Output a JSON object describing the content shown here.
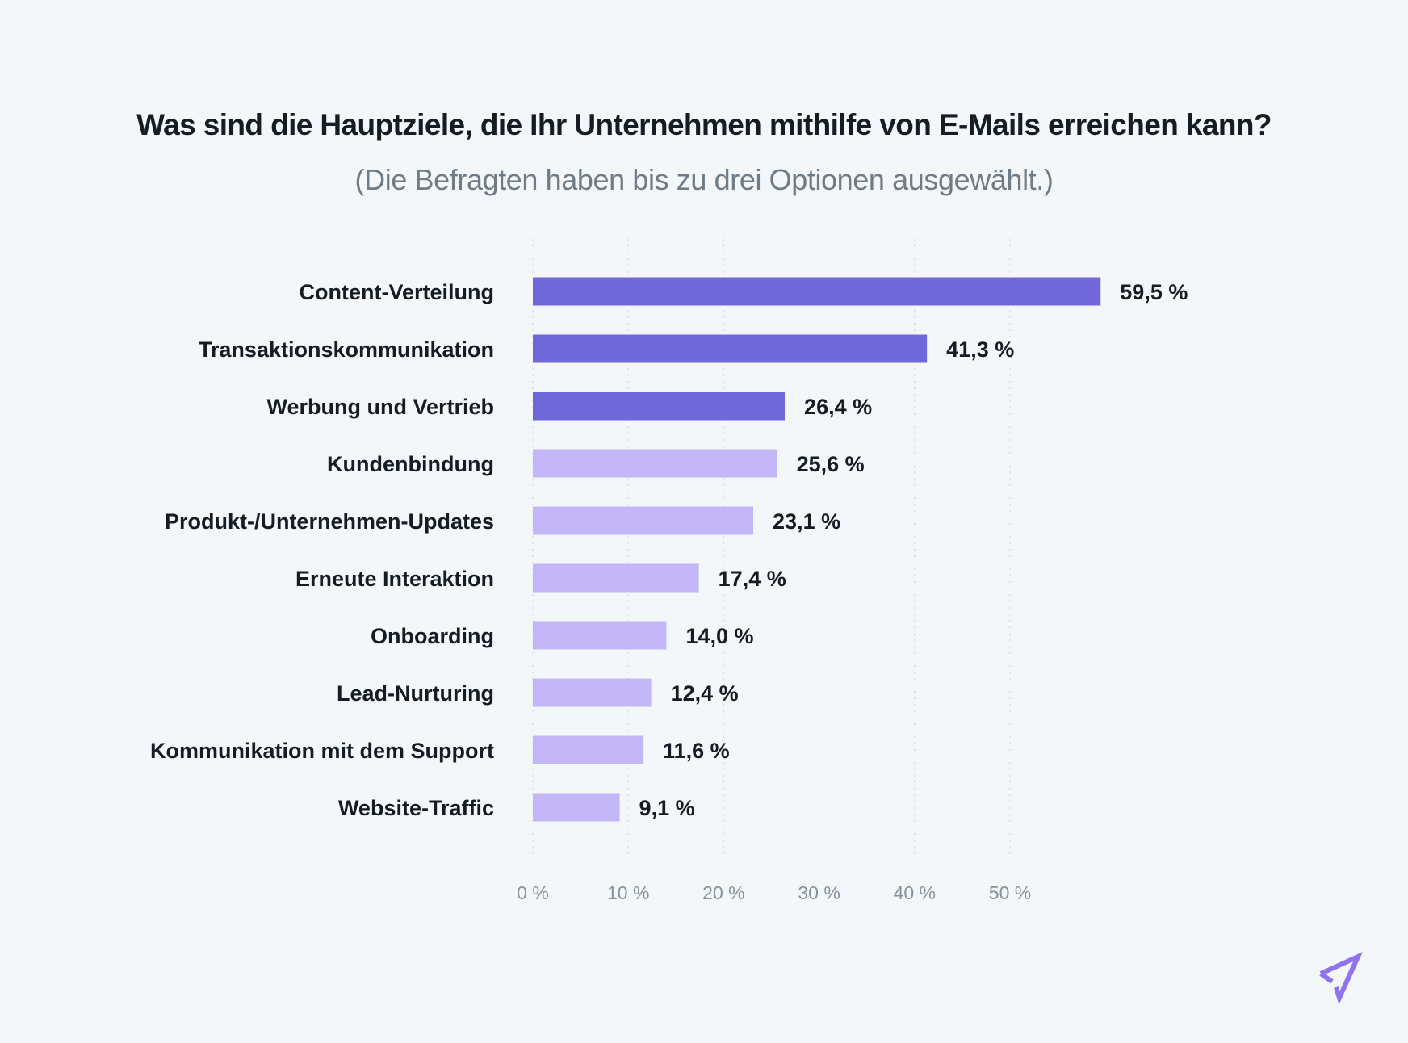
{
  "chart_data": {
    "type": "bar",
    "orientation": "horizontal",
    "title": "Was sind die Hauptziele, die Ihr Unternehmen mithilfe von E-Mails erreichen kann?",
    "subtitle": "(Die Befragten haben bis zu drei Optionen ausgewählt.)",
    "xlabel": "",
    "ylabel": "",
    "xlim": [
      0,
      50
    ],
    "x_ticks": [
      0,
      10,
      20,
      30,
      40,
      50
    ],
    "x_tick_labels": [
      "0 %",
      "10 %",
      "20 %",
      "30 %",
      "40 %",
      "50 %"
    ],
    "grid": "vertical dotted",
    "categories": [
      "Content-Verteilung",
      "Transaktionskommunikation",
      "Werbung und Vertrieb",
      "Kundenbindung",
      "Produkt-/Unternehmen-Updates",
      "Erneute Interaktion",
      "Onboarding",
      "Lead-Nurturing",
      "Kommunikation mit dem Support",
      "Website-Traffic"
    ],
    "values": [
      59.5,
      41.3,
      26.4,
      25.6,
      23.1,
      17.4,
      14.0,
      12.4,
      11.6,
      9.1
    ],
    "value_labels": [
      "59,5 %",
      "41,3 %",
      "26,4 %",
      "25,6 %",
      "23,1 %",
      "17,4 %",
      "14,0 %",
      "12,4 %",
      "11,6 %",
      "9,1 %"
    ],
    "highlighted_count": 3,
    "colors": {
      "highlight": "#7067d9",
      "normal": "#c4b7f7"
    }
  },
  "colors": {
    "background": "#f3f7fa",
    "logo": "#8f74ee"
  },
  "logo": {
    "icon": "paper-plane-icon"
  }
}
